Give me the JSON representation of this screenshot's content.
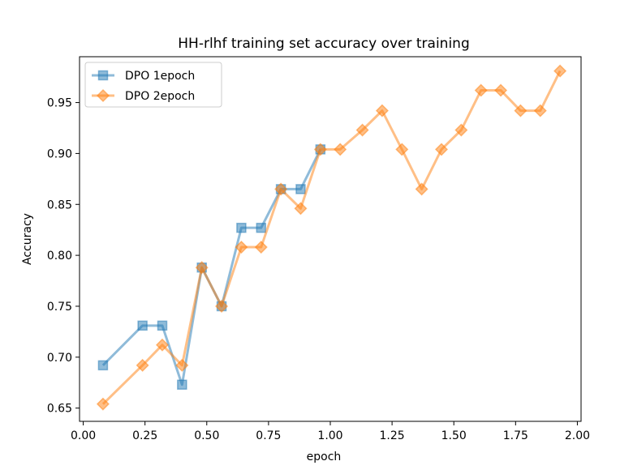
{
  "chart_data": {
    "type": "line",
    "title": "HH-rlhf training set accuracy over training",
    "xlabel": "epoch",
    "ylabel": "Accuracy",
    "xlim": [
      -0.015,
      2.015
    ],
    "ylim": [
      0.637,
      0.995
    ],
    "xticks": [
      0.0,
      0.25,
      0.5,
      0.75,
      1.0,
      1.25,
      1.5,
      1.75,
      2.0
    ],
    "xtick_labels": [
      "0.00",
      "0.25",
      "0.50",
      "0.75",
      "1.00",
      "1.25",
      "1.50",
      "1.75",
      "2.00"
    ],
    "yticks": [
      0.65,
      0.7,
      0.75,
      0.8,
      0.85,
      0.9,
      0.95
    ],
    "ytick_labels": [
      "0.65",
      "0.70",
      "0.75",
      "0.80",
      "0.85",
      "0.90",
      "0.95"
    ],
    "grid": false,
    "legend_position": "upper-left",
    "series": [
      {
        "name": "DPO 1epoch",
        "color": "#1f77b4",
        "marker": "square",
        "x": [
          0.08,
          0.24,
          0.32,
          0.4,
          0.48,
          0.56,
          0.64,
          0.72,
          0.8,
          0.88,
          0.96
        ],
        "y": [
          0.692,
          0.731,
          0.731,
          0.673,
          0.788,
          0.75,
          0.827,
          0.827,
          0.865,
          0.865,
          0.904
        ]
      },
      {
        "name": "DPO 2epoch",
        "color": "#ff7f0e",
        "marker": "diamond",
        "x": [
          0.08,
          0.24,
          0.32,
          0.4,
          0.48,
          0.56,
          0.64,
          0.72,
          0.8,
          0.88,
          0.96,
          1.04,
          1.13,
          1.21,
          1.29,
          1.37,
          1.45,
          1.53,
          1.61,
          1.69,
          1.77,
          1.85,
          1.93
        ],
        "y": [
          0.654,
          0.692,
          0.712,
          0.692,
          0.788,
          0.75,
          0.808,
          0.808,
          0.865,
          0.846,
          0.904,
          0.904,
          0.923,
          0.942,
          0.904,
          0.865,
          0.904,
          0.923,
          0.962,
          0.962,
          0.942,
          0.942,
          0.981
        ]
      }
    ]
  }
}
